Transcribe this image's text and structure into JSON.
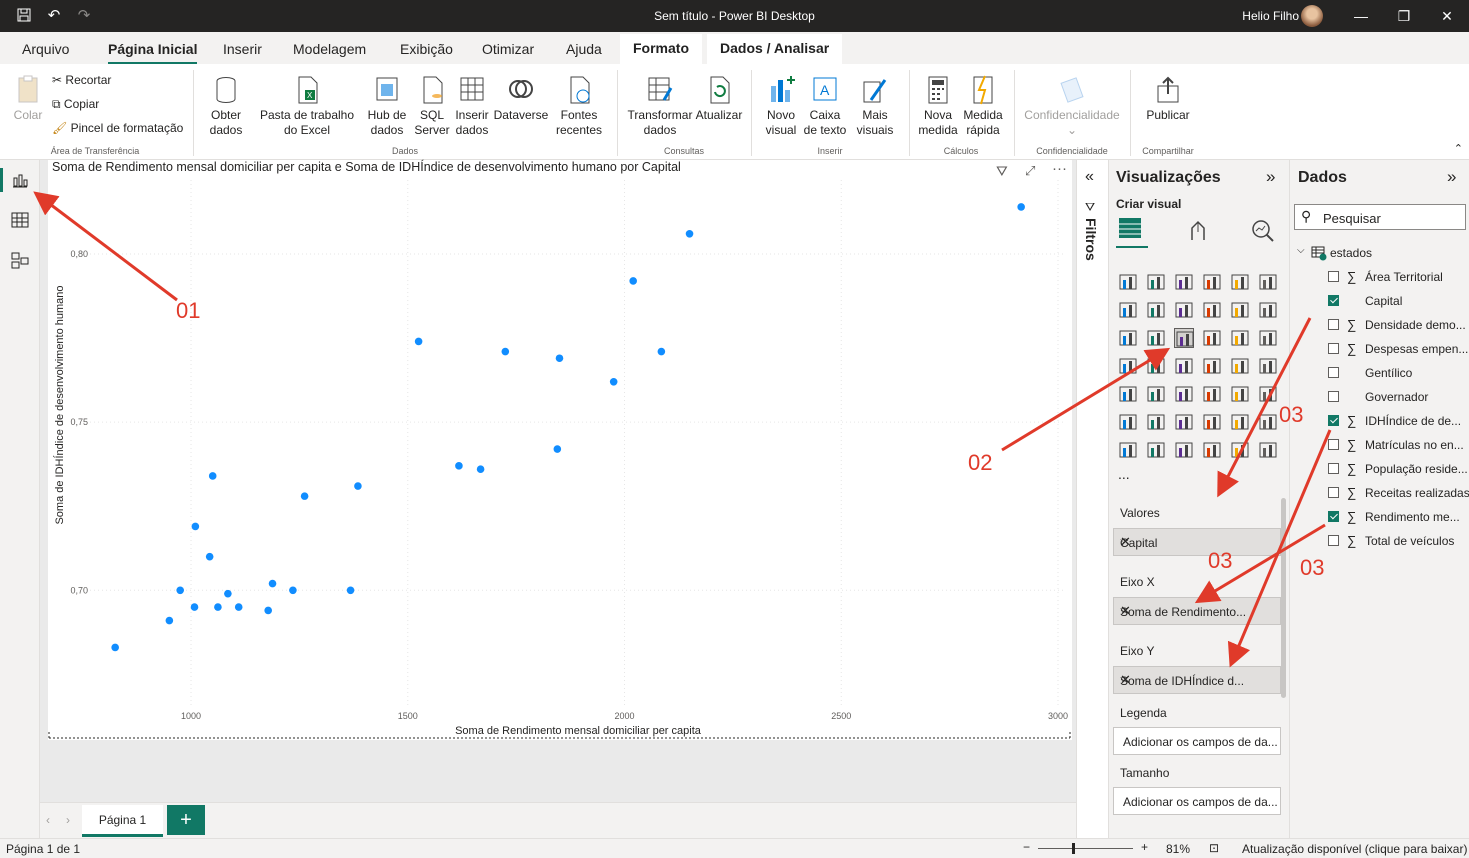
{
  "window": {
    "title": "Sem título - Power BI Desktop",
    "user": "Helio Filho"
  },
  "menu": {
    "tabs": [
      "Arquivo",
      "Página Inicial",
      "Inserir",
      "Modelagem",
      "Exibição",
      "Otimizar",
      "Ajuda",
      "Formato",
      "Dados / Analisar"
    ]
  },
  "ribbon": {
    "colar": "Colar",
    "recortar": "Recortar",
    "copiar": "Copiar",
    "pincel": "Pincel de formatação",
    "grp_area": "Área de Transferência",
    "obter": "Obter dados",
    "excel": "Pasta de trabalho do Excel",
    "hub": "Hub de dados",
    "sql": "SQL Server",
    "inserir_dados": "Inserir dados",
    "dataverse": "Dataverse",
    "fontes": "Fontes recentes",
    "grp_dados": "Dados",
    "transformar": "Transformar dados",
    "atualizar": "Atualizar",
    "grp_consultas": "Consultas",
    "novo_visual": "Novo visual",
    "caixa_texto": "Caixa de texto",
    "mais_visuais": "Mais visuais",
    "grp_inserir": "Inserir",
    "nova_medida": "Nova medida",
    "medida_rapida": "Medida rápida",
    "grp_calculos": "Cálculos",
    "confidencialidade": "Confidencialidade",
    "grp_conf": "Confidencialidade",
    "publicar": "Publicar",
    "grp_compartilhar": "Compartilhar"
  },
  "visual": {
    "title": "Soma de Rendimento mensal domiciliar per capita e Soma de IDHÍndice de desenvolvimento humano por Capital"
  },
  "chart_data": {
    "type": "scatter",
    "title": "Soma de Rendimento mensal domiciliar per capita e Soma de IDHÍndice de desenvolvimento humano por Capital",
    "xlabel": "Soma de Rendimento mensal domiciliar per capita",
    "ylabel": "Soma de IDHÍndice de desenvolvimento humano",
    "xlim": [
      790,
      3000
    ],
    "ylim": [
      0.665,
      0.822
    ],
    "xticks": [
      1000,
      1500,
      2000,
      2500,
      3000
    ],
    "yticks": [
      0.7,
      0.75,
      0.8
    ],
    "xtick_labels": [
      "1000",
      "1500",
      "2000",
      "2500",
      "3000"
    ],
    "ytick_labels": [
      "0,70",
      "0,75",
      "0,80"
    ],
    "x": [
      825,
      950,
      975,
      1008,
      1010,
      1043,
      1050,
      1062,
      1085,
      1110,
      1178,
      1188,
      1235,
      1262,
      1368,
      1385,
      1525,
      1618,
      1668,
      1725,
      1845,
      1850,
      1975,
      2020,
      2085,
      2150,
      2915
    ],
    "y": [
      0.683,
      0.691,
      0.7,
      0.695,
      0.719,
      0.71,
      0.734,
      0.695,
      0.699,
      0.695,
      0.694,
      0.702,
      0.7,
      0.728,
      0.7,
      0.731,
      0.774,
      0.737,
      0.736,
      0.771,
      0.742,
      0.769,
      0.762,
      0.792,
      0.771,
      0.806,
      0.814
    ],
    "grid": true,
    "point_color": "#118dff"
  },
  "pages": {
    "tab": "Página 1",
    "add": "+"
  },
  "status": {
    "page": "Página 1 de 1",
    "zoom": "81%",
    "update": "Atualização disponível (clique para baixar)"
  },
  "filters": {
    "label": "Filtros"
  },
  "viz": {
    "title": "Visualizações",
    "subtitle": "Criar visual",
    "valores": "Valores",
    "valores_value": "Capital",
    "eixo_x": "Eixo X",
    "eixo_x_value": "Soma de Rendimento...",
    "eixo_y": "Eixo Y",
    "eixo_y_value": "Soma de IDHÍndice d...",
    "legenda": "Legenda",
    "legenda_ph": "Adicionar os campos de da...",
    "tamanho": "Tamanho",
    "tamanho_ph": "Adicionar os campos de da...",
    "more": "..."
  },
  "dados": {
    "title": "Dados",
    "search": "Pesquisar",
    "table": "estados",
    "fields": [
      {
        "name": "Área Territorial",
        "sigma": true,
        "checked": false
      },
      {
        "name": "Capital",
        "sigma": false,
        "checked": true
      },
      {
        "name": "Densidade demo...",
        "sigma": true,
        "checked": false
      },
      {
        "name": "Despesas empen...",
        "sigma": true,
        "checked": false
      },
      {
        "name": "Gentílico",
        "sigma": false,
        "checked": false
      },
      {
        "name": "Governador",
        "sigma": false,
        "checked": false
      },
      {
        "name": "IDHÍndice de de...",
        "sigma": true,
        "checked": true
      },
      {
        "name": "Matrículas no en...",
        "sigma": true,
        "checked": false
      },
      {
        "name": "População reside...",
        "sigma": true,
        "checked": false
      },
      {
        "name": "Receitas realizadas",
        "sigma": true,
        "checked": false
      },
      {
        "name": "Rendimento me...",
        "sigma": true,
        "checked": true
      },
      {
        "name": "Total de veículos",
        "sigma": true,
        "checked": false
      }
    ]
  },
  "annotations": {
    "a01": "01",
    "a02": "02",
    "a03a": "03",
    "a03b": "03",
    "a03c": "03",
    "color": "#e03a2a"
  }
}
